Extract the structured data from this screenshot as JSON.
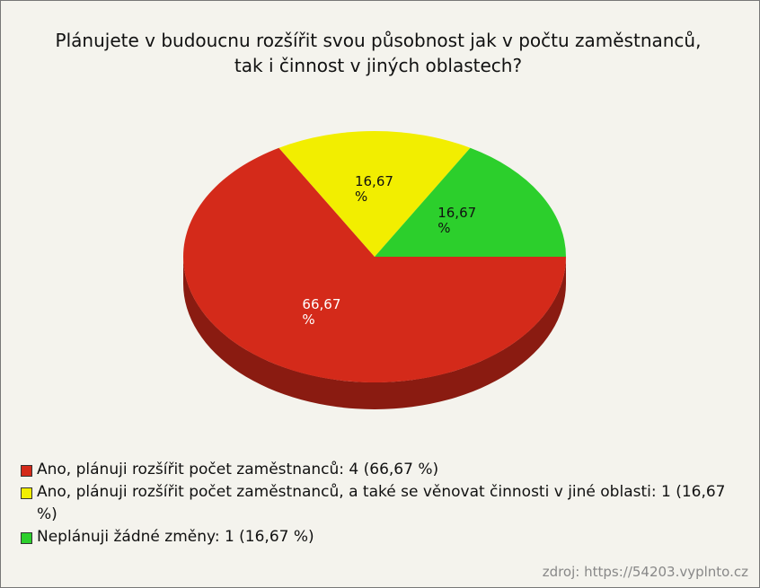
{
  "chart_data": {
    "type": "pie",
    "title": "Plánujete v budoucnu rozšířit svou působnost jak v počtu zaměstnanců, tak i činnost v jiných oblastech?",
    "categories": [
      "Ano, plánuji rozšířit počet zaměstnanců: 4 (66,67 %)",
      "Ano, plánuji rozšířit počet zaměstnanců, a také se věnovat činnosti v jiné oblasti: 1 (16,67 %)",
      "Neplánuji žádné změny: 1 (16,67 %)"
    ],
    "values": [
      66.67,
      16.67,
      16.67
    ],
    "value_labels": [
      "66,67 %",
      "16,67 %",
      "16,67 %"
    ],
    "colors": [
      "#d42a1a",
      "#f2ee00",
      "#2ccf2c"
    ],
    "source": "zdroj: https://54203.vyplnto.cz"
  }
}
